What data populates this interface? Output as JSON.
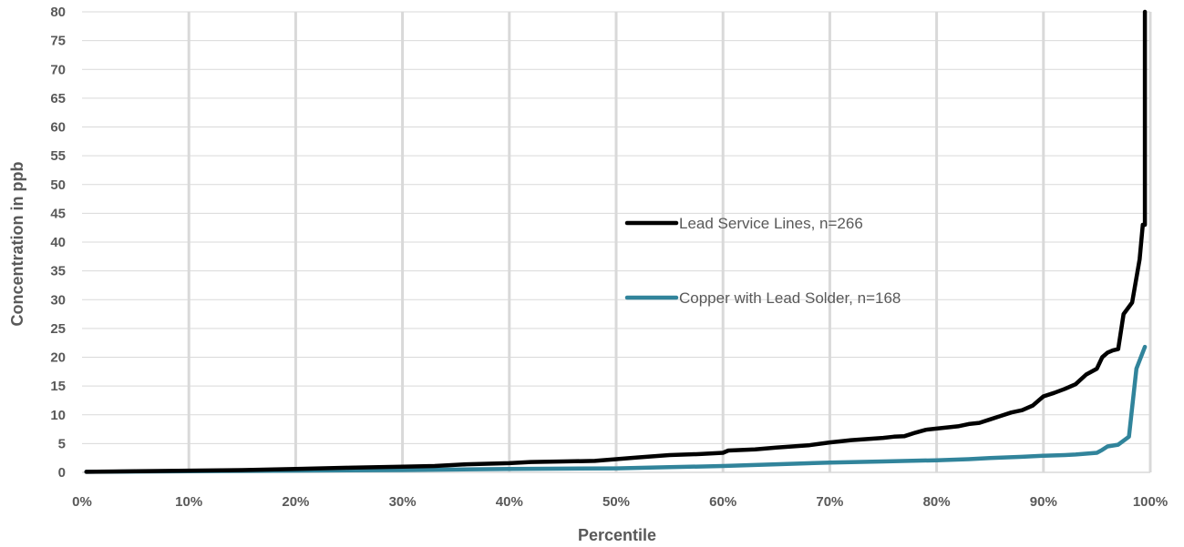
{
  "chart_data": {
    "type": "line",
    "xlabel": "Percentile",
    "ylabel": "Concentration in ppb",
    "xlim": [
      0,
      100
    ],
    "ylim": [
      0,
      80
    ],
    "x_ticks": [
      "0%",
      "10%",
      "20%",
      "30%",
      "40%",
      "50%",
      "60%",
      "70%",
      "80%",
      "90%",
      "100%"
    ],
    "y_ticks": [
      "0",
      "5",
      "10",
      "15",
      "20",
      "25",
      "30",
      "35",
      "40",
      "45",
      "50",
      "55",
      "60",
      "65",
      "70",
      "75",
      "80"
    ],
    "grid": true,
    "legend_position": "center-right",
    "series": [
      {
        "name": "Lead Service Lines, n=266",
        "color": "#000000",
        "x": [
          0.4,
          5,
          10,
          15,
          20,
          25,
          30,
          33,
          36,
          40,
          42,
          45,
          48,
          50,
          52,
          55,
          58,
          60,
          60.5,
          63,
          65,
          68,
          70,
          72,
          75,
          76,
          77,
          78,
          79,
          80,
          82,
          83,
          84,
          85,
          86,
          87,
          88,
          89,
          90,
          91,
          92,
          93,
          94,
          95,
          95.5,
          96,
          96.5,
          97,
          97.5,
          98.3,
          99,
          99.3,
          99.5,
          99.5
        ],
        "y": [
          0.1,
          0.2,
          0.3,
          0.4,
          0.6,
          0.8,
          1.0,
          1.1,
          1.4,
          1.6,
          1.8,
          1.9,
          2.0,
          2.3,
          2.6,
          3.0,
          3.2,
          3.4,
          3.8,
          4.0,
          4.3,
          4.7,
          5.2,
          5.6,
          6.0,
          6.2,
          6.3,
          6.9,
          7.4,
          7.6,
          8.0,
          8.4,
          8.6,
          9.2,
          9.8,
          10.4,
          10.8,
          11.6,
          13.2,
          13.8,
          14.5,
          15.3,
          17.0,
          18.0,
          20.0,
          20.8,
          21.2,
          21.4,
          27.5,
          29.5,
          37.0,
          43.0,
          43.0,
          80.0
        ]
      },
      {
        "name": "Copper with Lead Solder, n=168",
        "color": "#31849B",
        "x": [
          0.4,
          10,
          20,
          30,
          40,
          50,
          55,
          60,
          65,
          70,
          75,
          80,
          83,
          85,
          88,
          90,
          92,
          93,
          95,
          95.5,
          96,
          97,
          98,
          98.7,
          99.5
        ],
        "y": [
          0.1,
          0.2,
          0.3,
          0.4,
          0.6,
          0.7,
          0.9,
          1.1,
          1.4,
          1.7,
          1.9,
          2.1,
          2.3,
          2.5,
          2.7,
          2.9,
          3.0,
          3.1,
          3.4,
          3.9,
          4.5,
          4.8,
          6.2,
          18.0,
          21.8
        ]
      }
    ]
  }
}
